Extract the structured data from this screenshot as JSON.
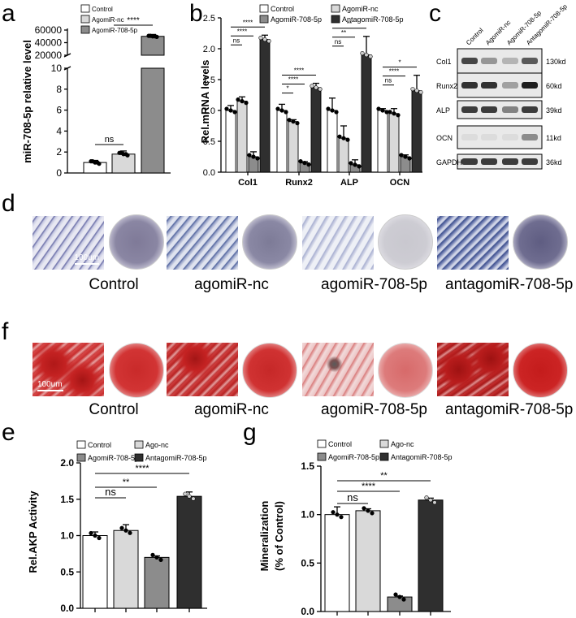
{
  "panels": {
    "a": "a",
    "b": "b",
    "c": "c",
    "d": "d",
    "f": "f",
    "e": "e",
    "g": "g"
  },
  "colors": {
    "control": "#ffffff",
    "agomir_nc": "#d9d9d9",
    "agomir_708": "#8c8c8c",
    "antagomir_708": "#2f2f2f"
  },
  "chart_data": [
    {
      "id": "a",
      "type": "bar",
      "ylabel": "miR-708-5p relative level",
      "categories": [
        "Control",
        "AgomiR-nc",
        "AgomiR-708-5p"
      ],
      "legend": [
        "Control",
        "AgomiR-nc",
        "AgomiR-708-5p"
      ],
      "values": [
        1.0,
        1.8,
        50000
      ],
      "errors": [
        0.2,
        0.3,
        3000
      ],
      "lower_axis": {
        "ylim": [
          0,
          10
        ],
        "ticks": [
          "0",
          "2",
          "4",
          "6",
          "8",
          "10"
        ]
      },
      "upper_axis": {
        "ylim": [
          20000,
          60000
        ],
        "ticks": [
          "20000",
          "40000",
          "60000"
        ]
      },
      "annotations": [
        "ns",
        "****"
      ]
    },
    {
      "id": "b",
      "type": "bar",
      "ylabel": "Rel.mRNA levels",
      "categories": [
        "Col1",
        "Runx2",
        "ALP",
        "OCN"
      ],
      "legend": [
        "Control",
        "AgomiR-nc",
        "AgomiR-708-5p",
        "AntagomiR-708-5p"
      ],
      "ylim": [
        0,
        2.5
      ],
      "yticks": [
        "0.0",
        "0.5",
        "1.0",
        "1.5",
        "2.0",
        "2.5"
      ],
      "series": [
        {
          "name": "Control",
          "values": [
            1.0,
            1.0,
            1.0,
            1.0
          ],
          "errors": [
            0.08,
            0.1,
            0.2,
            0.03
          ]
        },
        {
          "name": "AgomiR-nc",
          "values": [
            1.15,
            0.82,
            0.55,
            0.95
          ],
          "errors": [
            0.07,
            0.03,
            0.2,
            0.08
          ]
        },
        {
          "name": "AgomiR-708-5p",
          "values": [
            0.25,
            0.15,
            0.12,
            0.25
          ],
          "errors": [
            0.08,
            0.02,
            0.08,
            0.03
          ]
        },
        {
          "name": "AntagomiR-708-5p",
          "values": [
            2.15,
            1.37,
            1.9,
            1.32
          ],
          "errors": [
            0.07,
            0.07,
            0.3,
            0.25
          ]
        }
      ],
      "annotations": {
        "Col1": [
          "ns",
          "****",
          "****"
        ],
        "Runx2": [
          "*",
          "****",
          "****"
        ],
        "ALP": [
          "ns",
          "**",
          "**"
        ],
        "OCN": [
          "ns",
          "****",
          "*"
        ]
      }
    },
    {
      "id": "e",
      "type": "bar",
      "ylabel": "Rel.AKP Activity",
      "categories": [
        "Control",
        "Ago-nc",
        "AgomiR-708-5p",
        "AntagomiR-708-5p"
      ],
      "legend": [
        "Control",
        "Ago-nc",
        "AgomiR-708-5p",
        "AntagomiR-708-5p"
      ],
      "values": [
        1.0,
        1.07,
        0.7,
        1.54
      ],
      "errors": [
        0.05,
        0.08,
        0.02,
        0.06
      ],
      "ylim": [
        0,
        2.0
      ],
      "yticks": [
        "0.0",
        "0.5",
        "1.0",
        "1.5",
        "2.0"
      ],
      "annotations": [
        "ns",
        "**",
        "****"
      ]
    },
    {
      "id": "g",
      "type": "bar",
      "ylabel": "Mineralization",
      "ylabel2": "(% of Control)",
      "categories": [
        "Control",
        "Ago-nc",
        "AgomiR-708-5p",
        "AntagomiR-708-5p"
      ],
      "legend": [
        "Control",
        "Ago-nc",
        "AgomiR-708-5p",
        "AntagomiR-708-5p"
      ],
      "values": [
        1.0,
        1.04,
        0.15,
        1.15
      ],
      "errors": [
        0.08,
        0.02,
        0.01,
        0.02
      ],
      "ylim": [
        0,
        1.5
      ],
      "yticks": [
        "0.0",
        "0.5",
        "1.0",
        "1.5"
      ],
      "annotations": [
        "ns",
        "****",
        "**"
      ]
    }
  ],
  "western_blot": {
    "lanes": [
      "Control",
      "AgomiR-nc",
      "AgomiR-708-5p",
      "AntagomiR-708-5p"
    ],
    "rows": [
      {
        "protein": "Col1",
        "size": "130kd"
      },
      {
        "protein": "Runx2",
        "size": "60kd"
      },
      {
        "protein": "ALP",
        "size": "39kd"
      },
      {
        "protein": "OCN",
        "size": "11kd"
      },
      {
        "protein": "GAPDH",
        "size": "36kd"
      }
    ]
  },
  "stain_row_d": {
    "labels": [
      "Control",
      "agomiR-nc",
      "agomiR-708-5p",
      "antagomiR-708-5p"
    ],
    "scale_bar": "100um"
  },
  "stain_row_f": {
    "labels": [
      "Control",
      "agomiR-nc",
      "agomiR-708-5p",
      "antagomiR-708-5p"
    ],
    "scale_bar": "100um"
  }
}
